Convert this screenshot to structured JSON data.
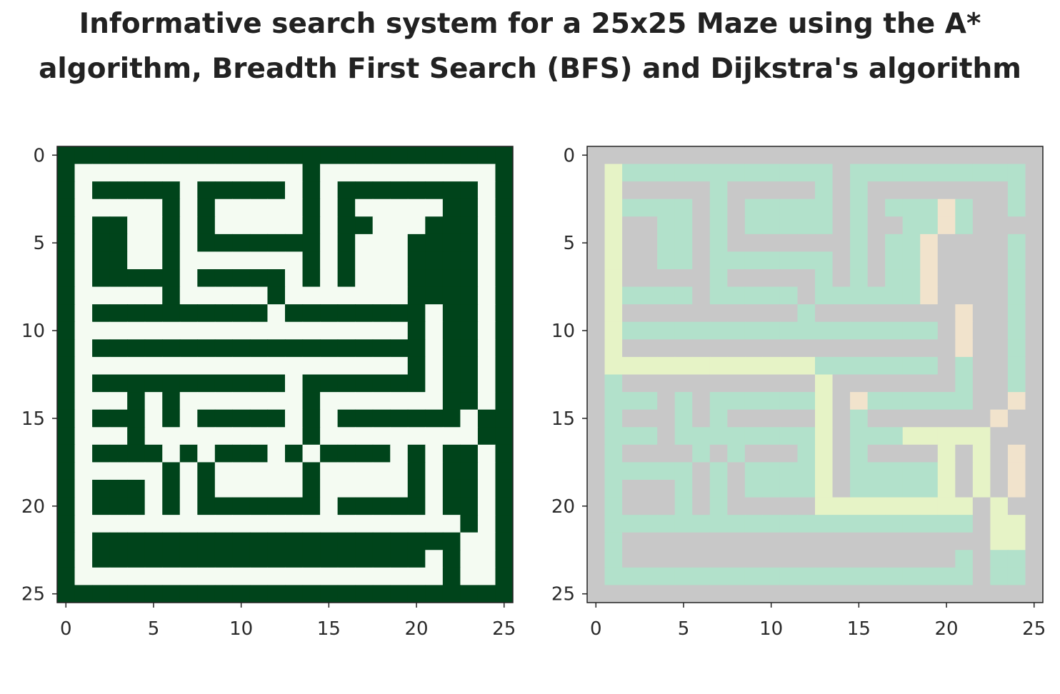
{
  "title": {
    "line1": "Informative search system for a 25x25 Maze using the A*",
    "line2": "algorithm, Breadth First Search (BFS) and Dijkstra's algorithm"
  },
  "colors": {
    "wall_dark_green": "#00441b",
    "open_white": "#f4fbf2",
    "wall_gray": "#c8c8c8",
    "explored_green": "#b2e1cb",
    "path_yellow_green": "#e6f3c6",
    "peach": "#f1e3cc",
    "axis": "#222222"
  },
  "chart_data": [
    {
      "type": "heatmap",
      "name": "maze",
      "xlim": [
        -0.5,
        25.5
      ],
      "ylim": [
        25.5,
        -0.5
      ],
      "xticks": [
        0,
        5,
        10,
        15,
        20,
        25
      ],
      "yticks": [
        0,
        5,
        10,
        15,
        20,
        25
      ],
      "grid": false,
      "legend": "none",
      "cell_colors": {
        "#": "wall_dark_green",
        ".": "open_white"
      },
      "grid_rows": [
        "##########################",
        "#.............#..........#",
        "#.#####.#####.#.########.#",
        "#.....#.#.....#.#.....##.#",
        "#.##..#.#.....#.##...###.#",
        "#.##..#.#######.#...####.#",
        "#.##..#.......#.#...####.#",
        "#.#####.#####.#.#...####.#",
        "#.....#.....#.......####.#",
        "#.##########.########.##.#",
        "#...................#.##.#",
        "#.###################.##.#",
        "#...................#.##.#",
        "#.###########.#######.##.#",
        "#...#.#.......#.......##.#",
        "#.###.#.#####.#.#######.#",
        "#...#.........#.........##",
        "#.####.#.###.#.####.#.##.#",
        "#.....#.#.....#.....#.##.#",
        "#.###.#.#.....#.....#.##.#",
        "#.###.#.#######.#####.##.#",
        "#......................#.#",
        "#.#####################..#",
        "#.###################.#..#",
        "#.....................#..#",
        "##########################"
      ]
    },
    {
      "type": "heatmap",
      "name": "search-result",
      "xlim": [
        -0.5,
        25.5
      ],
      "ylim": [
        25.5,
        -0.5
      ],
      "xticks": [
        0,
        5,
        10,
        15,
        20,
        25
      ],
      "yticks": [
        0,
        5,
        10,
        15,
        20,
        25
      ],
      "grid": false,
      "legend": "none",
      "cell_colors": {
        "#": "wall_gray",
        "e": "explored_green",
        "p": "path_yellow_green",
        "o": "peach"
      },
      "grid_rows": [
        "##########################",
        "#peeeeeeeeeeee#eeeeeeeeee#",
        "#p#####e#####e#e########e#",
        "#peeee#e#eeeee#e#eeeoe##e#",
        "#p##ee#e#eeeee#e##eeoe###e#",
        "#p##ee#e#######e#eeo####e#",
        "#p##ee#eeeeeee#e#eeo####e#",
        "#p#####e#####e#e#eeo####e#",
        "#peeee#eeeee#eeeeeeo####e#",
        "#p##########e########o##e#",
        "#peeeeeeeeeeeeeeeeee#o##e#",
        "#p###################o##e#",
        "#ppppppppppppeeeeeee#e##e#",
        "#e###########p#######e##e#",
        "#eee#e#eeeeeep#oeeeeee##o#",
        "#e###e#e#####p#e#######o#",
        "#eee#eeeeeeeep#eeeppppp##o#",
        "#e####e#e###ep#e####p#p#o#",
        "#eeeee#e#eeeep#eeeeep#p#o#",
        "#e###e#e#eeeep#eeeeep#p#o#",
        "#e###e#e#####ppppppppp#p#o#",
        "#eeeeeeeeeeeeeeeeeeeee#pppe#",
        "#e#####################ppp#",
        "#e###################e#eep#",
        "#eeeeeeeeeeeeeeeeeeeee#eep#",
        "##########################"
      ]
    }
  ]
}
